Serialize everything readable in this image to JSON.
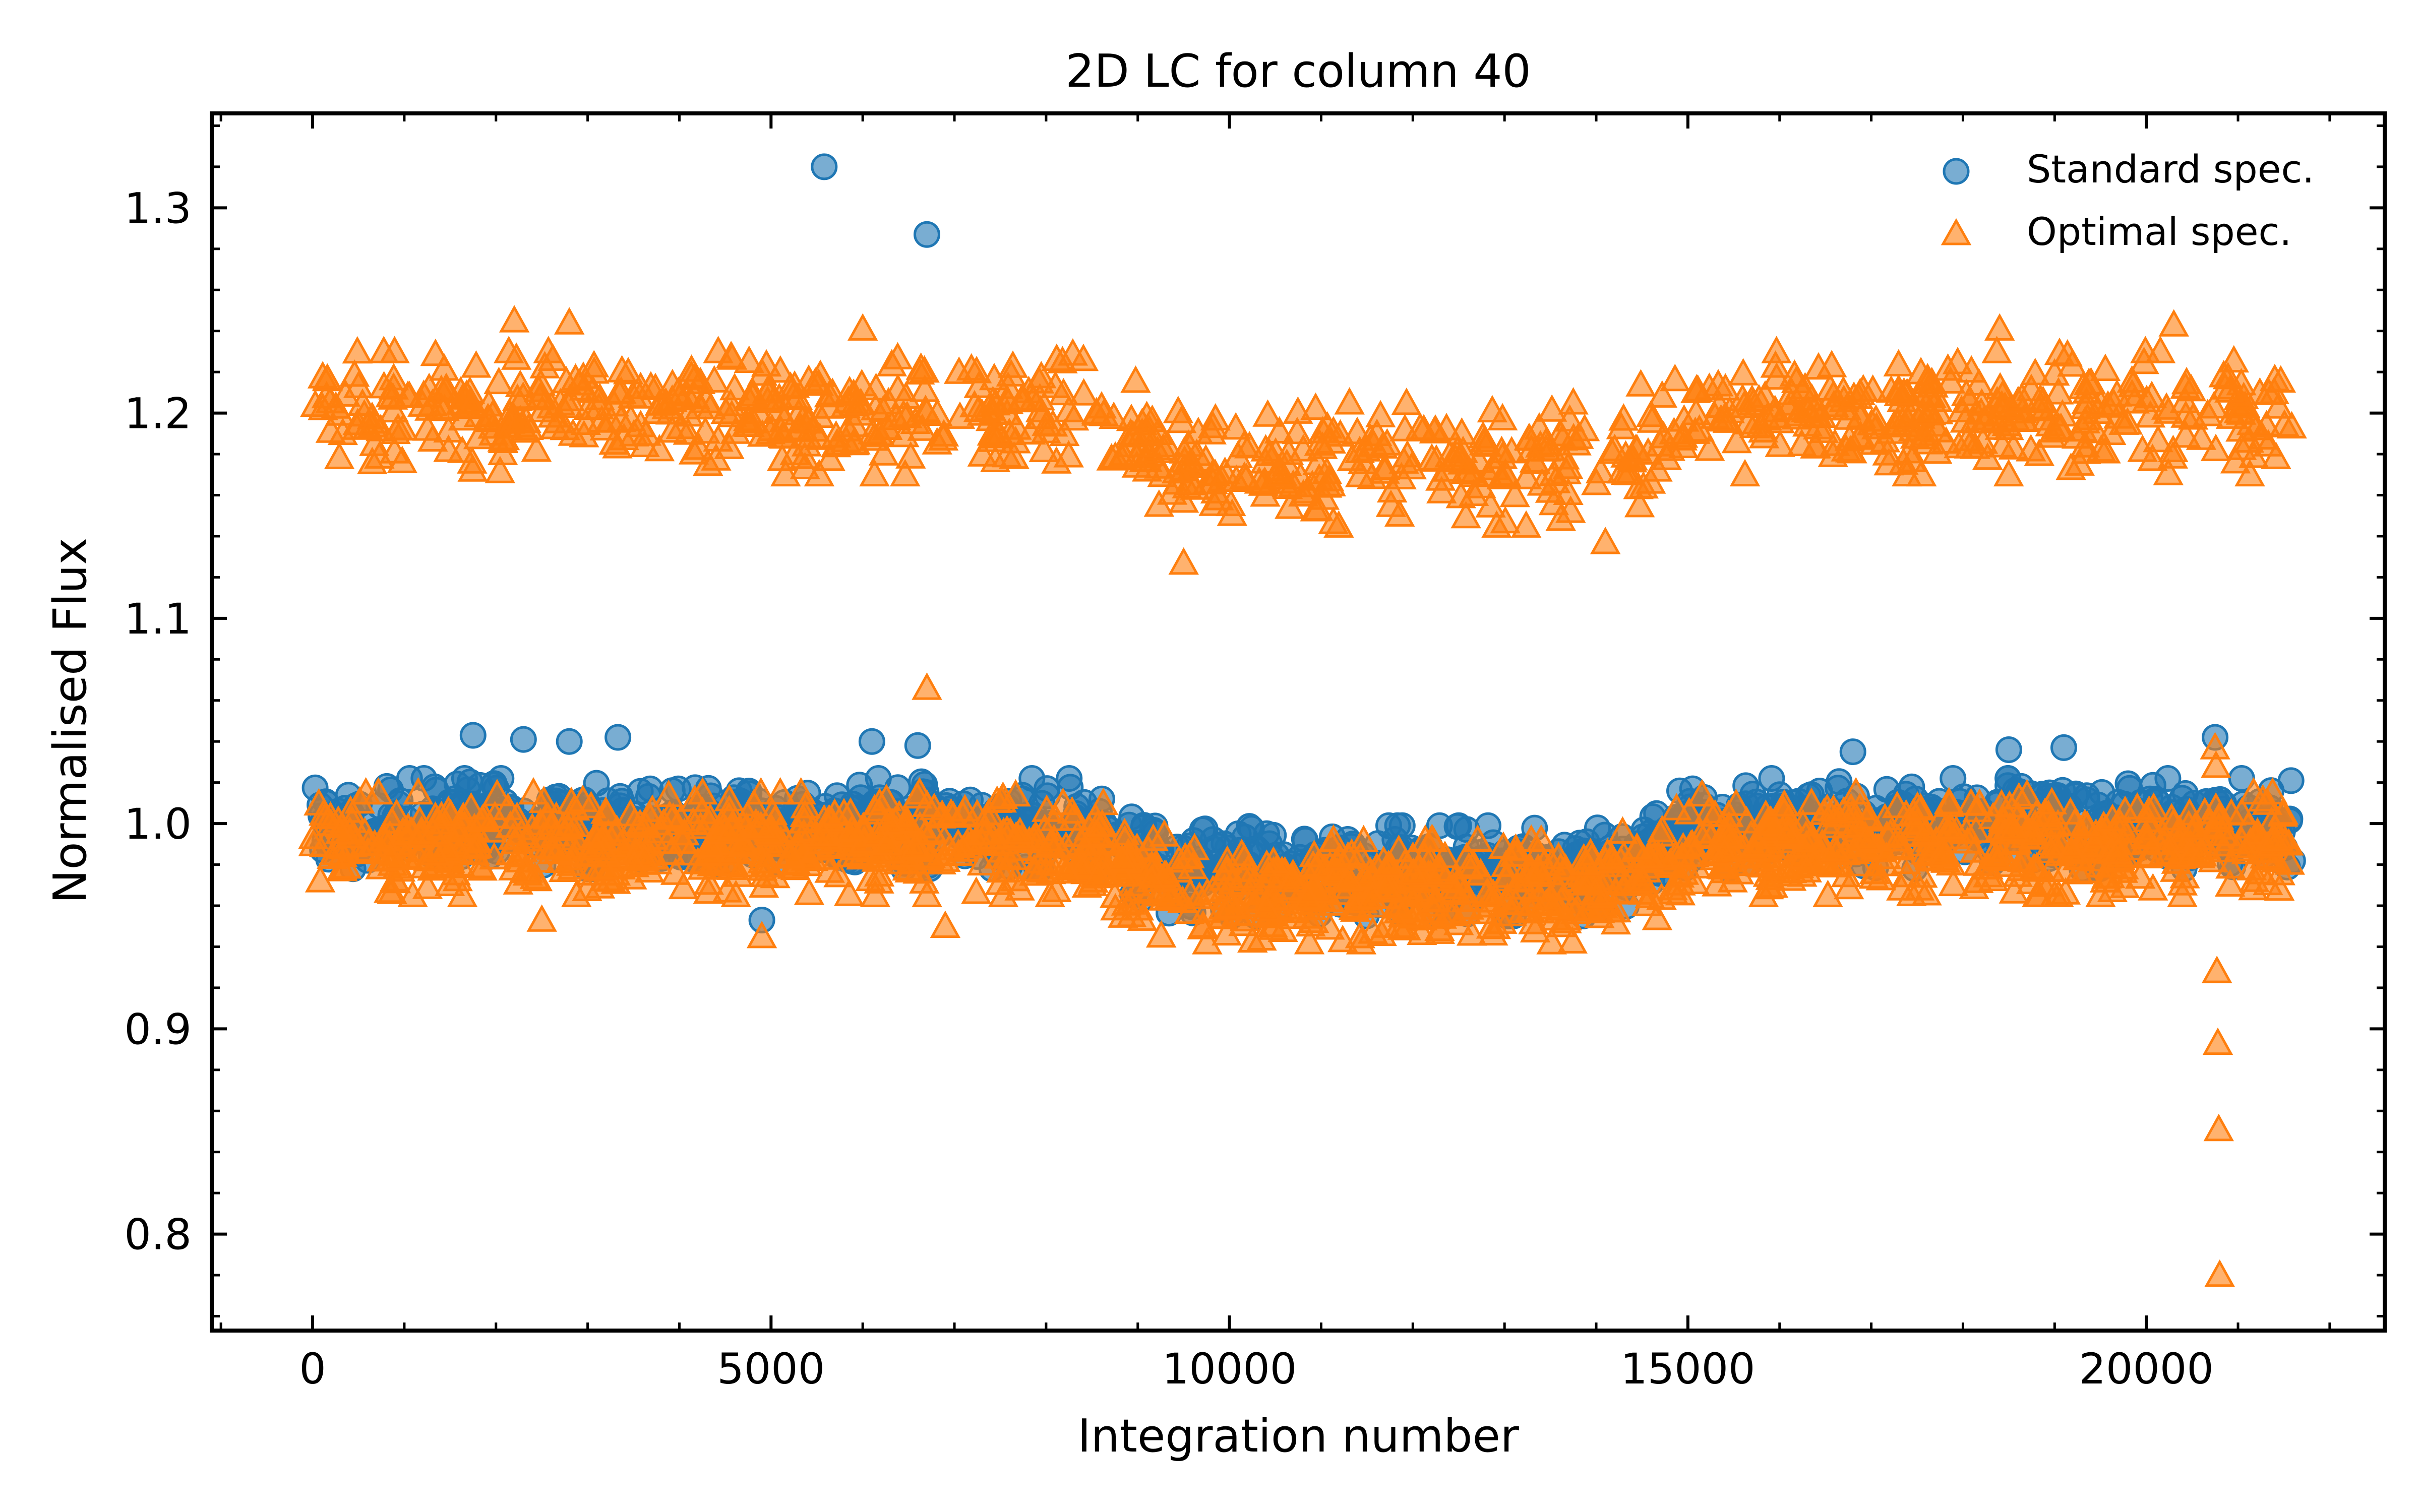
{
  "chart_data": {
    "type": "scatter",
    "title": "2D LC for column 40",
    "xlabel": "Integration number",
    "ylabel": "Normalised Flux",
    "xlim": [
      -1100,
      22600
    ],
    "ylim": [
      0.753,
      1.346
    ],
    "xticks": [
      0,
      5000,
      10000,
      15000,
      20000
    ],
    "xtick_labels": [
      "0",
      "5000",
      "10000",
      "15000",
      "20000"
    ],
    "yticks": [
      0.8,
      0.9,
      1.0,
      1.1,
      1.2,
      1.3
    ],
    "ytick_labels": [
      "0.8",
      "0.9",
      "1.0",
      "1.1",
      "1.2",
      "1.3"
    ],
    "grid": false,
    "legend_position": "top-right",
    "n_points_per_series": 21600,
    "series": [
      {
        "name": "Standard spec.",
        "marker": "circle",
        "color": "#1f77b4",
        "alpha": 0.6,
        "trend": {
          "x": [
            0,
            8400,
            9400,
            14100,
            15200,
            21600
          ],
          "y": [
            1.0,
            1.0,
            0.977,
            0.977,
            1.0,
            1.0
          ]
        },
        "scatter_half_width": 0.022,
        "outliers": [
          {
            "x": 5580,
            "y": 1.32
          },
          {
            "x": 6700,
            "y": 1.287
          },
          {
            "x": 1750,
            "y": 1.043
          },
          {
            "x": 2300,
            "y": 1.041
          },
          {
            "x": 2800,
            "y": 1.04
          },
          {
            "x": 3330,
            "y": 1.042
          },
          {
            "x": 6100,
            "y": 1.04
          },
          {
            "x": 6600,
            "y": 1.038
          },
          {
            "x": 16800,
            "y": 1.035
          },
          {
            "x": 18500,
            "y": 1.036
          },
          {
            "x": 19100,
            "y": 1.037
          },
          {
            "x": 20750,
            "y": 1.042
          },
          {
            "x": 4900,
            "y": 0.953
          }
        ]
      },
      {
        "name": "Optimal spec.",
        "marker": "triangle",
        "color": "#ff7f0e",
        "alpha": 0.6,
        "trend": {
          "x": [
            0,
            8400,
            9400,
            14100,
            15200,
            21600
          ],
          "y": [
            0.99,
            0.99,
            0.967,
            0.967,
            0.99,
            0.99
          ]
        },
        "scatter_half_width": 0.025,
        "upper_band": {
          "trend": {
            "x": [
              0,
              8400,
              9400,
              14100,
              15200,
              21600
            ],
            "y": [
              1.2,
              1.2,
              1.175,
              1.175,
              1.2,
              1.2
            ]
          },
          "scatter_half_width": 0.03
        },
        "outliers": [
          {
            "x": 20750,
            "y": 1.037
          },
          {
            "x": 20760,
            "y": 1.028
          },
          {
            "x": 20770,
            "y": 0.928
          },
          {
            "x": 20780,
            "y": 0.893
          },
          {
            "x": 20790,
            "y": 0.851
          },
          {
            "x": 20800,
            "y": 0.78
          },
          {
            "x": 6700,
            "y": 1.066
          },
          {
            "x": 9500,
            "y": 1.127
          },
          {
            "x": 2200,
            "y": 1.245
          },
          {
            "x": 2800,
            "y": 1.244
          },
          {
            "x": 6000,
            "y": 1.241
          },
          {
            "x": 18400,
            "y": 1.241
          },
          {
            "x": 20300,
            "y": 1.243
          },
          {
            "x": 14100,
            "y": 1.137
          },
          {
            "x": 4900,
            "y": 0.945
          },
          {
            "x": 2500,
            "y": 0.953
          },
          {
            "x": 6900,
            "y": 0.95
          }
        ]
      }
    ]
  }
}
